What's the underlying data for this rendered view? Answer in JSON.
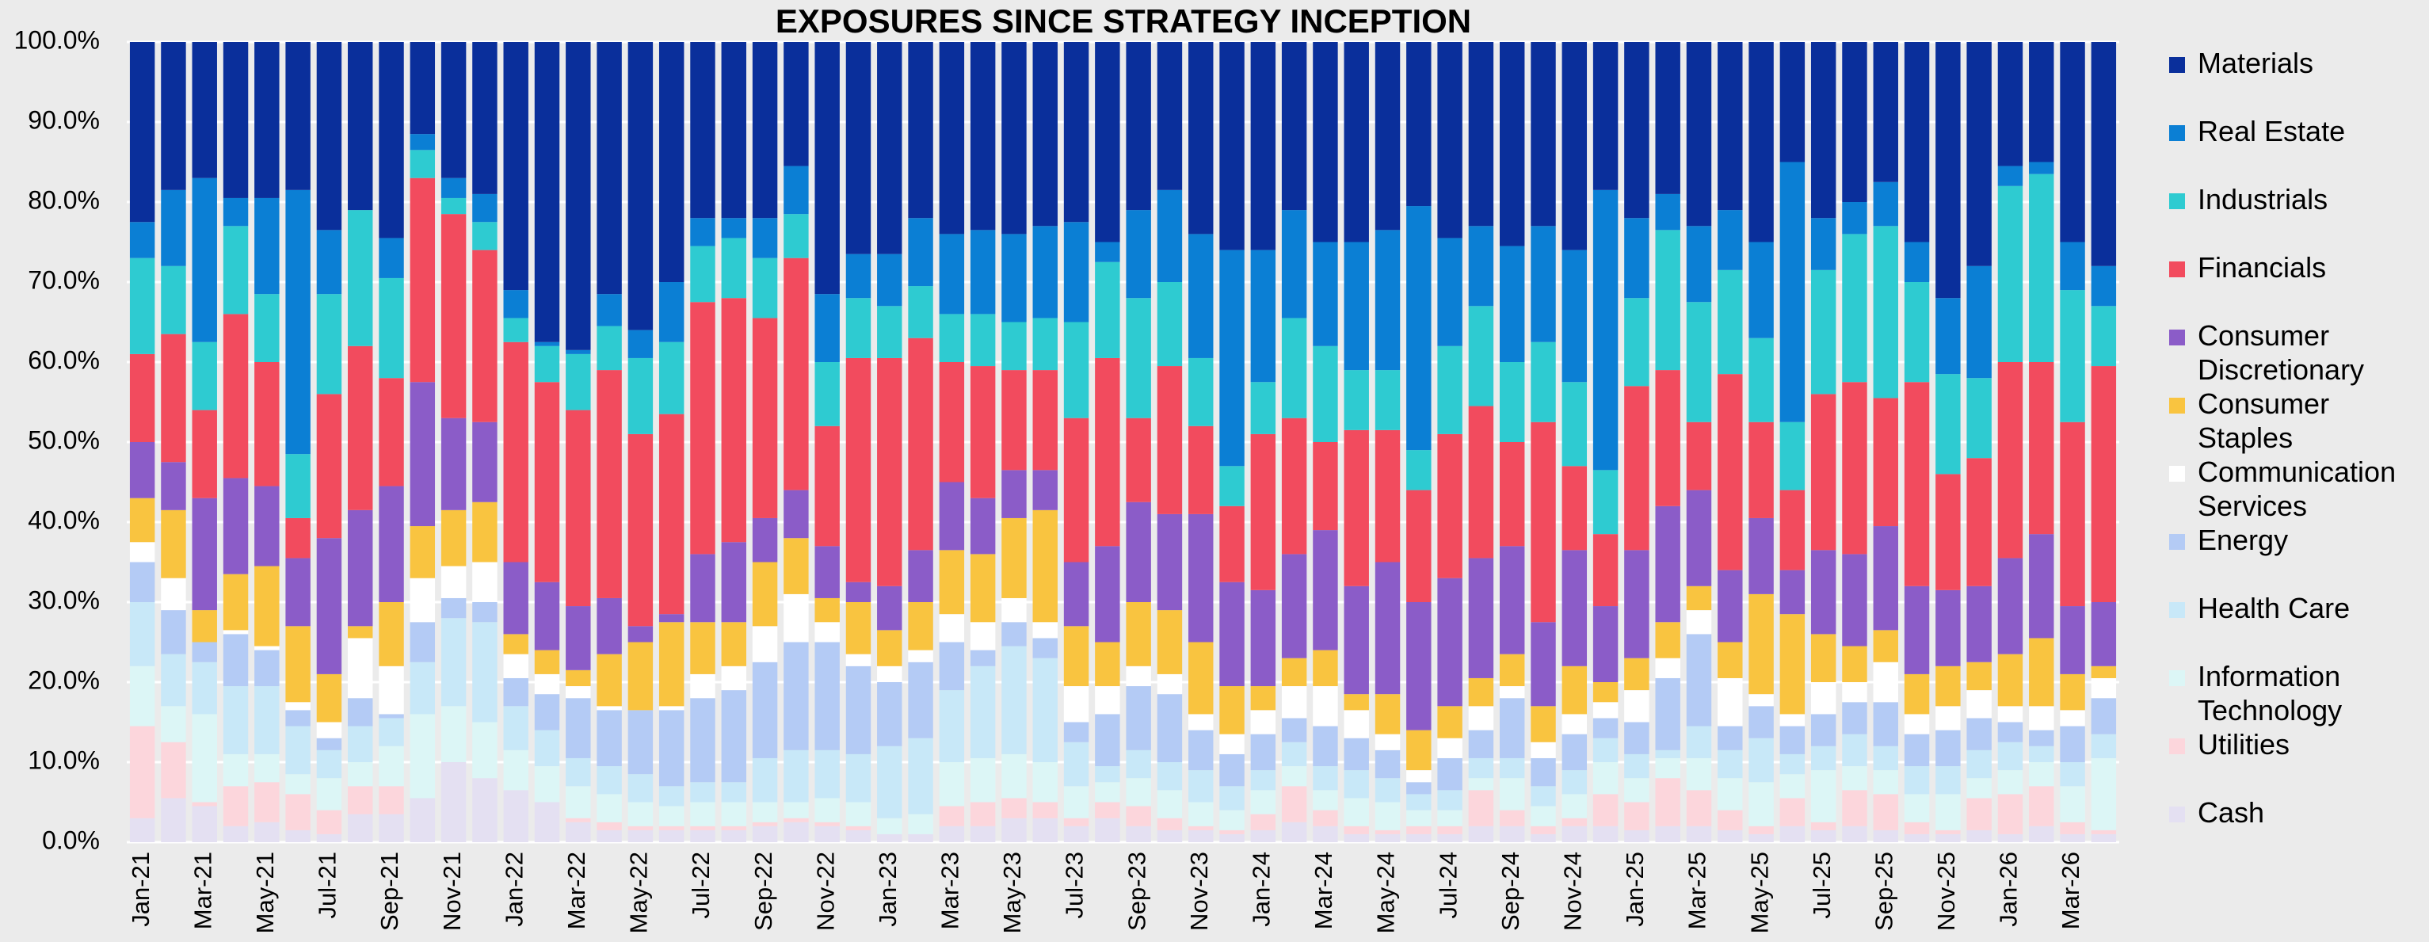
{
  "chart_data": {
    "type": "bar",
    "stacked": true,
    "title": "EXPOSURES SINCE STRATEGY INCEPTION",
    "categories": [
      "Jan-21",
      null,
      "Mar-21",
      null,
      "May-21",
      null,
      "Jul-21",
      null,
      "Sep-21",
      null,
      "Nov-21",
      null,
      "Jan-22",
      null,
      "Mar-22",
      null,
      "May-22",
      null,
      "Jul-22",
      null,
      "Sep-22",
      null,
      "Nov-22",
      null,
      "Jan-23",
      null,
      "Mar-23",
      null,
      "May-23",
      null,
      "Jul-23",
      null,
      "Sep-23",
      null,
      "Nov-23",
      null,
      "Jan-24",
      null,
      "Mar-24",
      null,
      "May-24",
      null,
      "Jul-24",
      null,
      "Sep-24",
      null,
      "Nov-24",
      null,
      "Jan-25",
      null,
      "Mar-25",
      null,
      "May-25",
      null,
      "Jul-25",
      null,
      "Sep-25",
      null,
      "Nov-25",
      null,
      "Jan-26",
      null,
      "Mar-26",
      null
    ],
    "series": [
      {
        "name": "Cash",
        "color": "#e4e0f2",
        "values": [
          3,
          5.5,
          4.5,
          2,
          2.5,
          1.5,
          1,
          3.5,
          3.5,
          5.5,
          10,
          8,
          6.5,
          5,
          2.5,
          1.5,
          1.5,
          1.5,
          1.5,
          1.5,
          2,
          2.5,
          2,
          1.5,
          1,
          1,
          2,
          2,
          3,
          3,
          2,
          3,
          2,
          1.5,
          1.5,
          1,
          1.5,
          2.5,
          2,
          1,
          1,
          1,
          1,
          2,
          2,
          1,
          2,
          2,
          1.5,
          2,
          2,
          1.5,
          1,
          2,
          1.5,
          2,
          1.5,
          1,
          1,
          1.5,
          1,
          2,
          1,
          1
        ]
      },
      {
        "name": "Utilities",
        "color": "#fcd6dc",
        "values": [
          11.5,
          7,
          0.5,
          5,
          5,
          4.5,
          3,
          3.5,
          3.5,
          0,
          0,
          0,
          0,
          0,
          0.5,
          1,
          0.5,
          0.5,
          0.5,
          0.5,
          0.5,
          0.5,
          0.5,
          0.5,
          0,
          0,
          2.5,
          3,
          2.5,
          2,
          1,
          2,
          2.5,
          1.5,
          0.5,
          0.5,
          2,
          4.5,
          2,
          1,
          0.5,
          1,
          1,
          4.5,
          2,
          1,
          1,
          4,
          3.5,
          6,
          4.5,
          2.5,
          1,
          3.5,
          1,
          4.5,
          4.5,
          1.5,
          0.5,
          4,
          5,
          5,
          1.5,
          0.5
        ]
      },
      {
        "name": "Information Technology",
        "color": "#dcf6f6",
        "values": [
          7.5,
          4.5,
          11,
          4,
          3.5,
          2.5,
          4,
          3,
          5,
          10.5,
          7,
          7,
          5,
          4.5,
          4,
          3.5,
          3,
          2.5,
          3,
          3,
          2.5,
          2,
          3,
          3,
          2,
          2.5,
          5.5,
          5.5,
          5.5,
          5,
          4,
          2.5,
          3.5,
          3.5,
          3,
          2.5,
          3,
          2.5,
          2.5,
          3.5,
          3.5,
          2,
          2,
          1.5,
          4,
          2.5,
          3,
          4,
          3,
          2.5,
          4,
          4,
          5.5,
          3,
          6.5,
          3,
          3,
          3.5,
          4.5,
          2.5,
          3,
          3,
          4.5,
          9
        ]
      },
      {
        "name": "Health Care",
        "color": "#c8e8f8",
        "values": [
          8,
          6.5,
          6.5,
          8.5,
          8.5,
          6,
          3.5,
          4.5,
          3.5,
          6.5,
          11,
          12.5,
          5.5,
          4.5,
          3.5,
          3.5,
          3.5,
          2.5,
          2.5,
          2.5,
          5.5,
          6.5,
          6,
          6,
          9,
          9.5,
          9,
          11.5,
          13.5,
          13,
          5.5,
          2,
          3.5,
          3.5,
          4,
          3,
          2.5,
          3,
          3,
          3.5,
          3,
          2,
          2.5,
          2.5,
          2.5,
          2.5,
          3,
          3,
          3,
          1,
          4,
          3.5,
          5.5,
          2.5,
          3,
          4,
          3,
          3.5,
          3.5,
          3.5,
          3.5,
          2,
          3,
          3
        ]
      },
      {
        "name": "Energy",
        "color": "#b4cbf5",
        "values": [
          5,
          5.5,
          2.5,
          6.5,
          4.5,
          2,
          1.5,
          3.5,
          0.5,
          5,
          2.5,
          2.5,
          3.5,
          4.5,
          7.5,
          7,
          8,
          9.5,
          10.5,
          11.5,
          12,
          13.5,
          13.5,
          11,
          8,
          9.5,
          6,
          2,
          3,
          2.5,
          2.5,
          6.5,
          8,
          8.5,
          5,
          4,
          4.5,
          3,
          5,
          4,
          3.5,
          1.5,
          4,
          3.5,
          7.5,
          3.5,
          4.5,
          2.5,
          4,
          9,
          11.5,
          3,
          4,
          3.5,
          4,
          4,
          5.5,
          4,
          4.5,
          4,
          2.5,
          2,
          4.5,
          4.5
        ]
      },
      {
        "name": "Communication Services",
        "color": "#ffffff",
        "values": [
          2.5,
          4,
          0,
          0.5,
          0.5,
          1,
          2,
          7.5,
          6,
          5.5,
          4,
          5,
          3,
          2.5,
          1.5,
          0.5,
          0,
          0.5,
          3,
          3,
          4.5,
          6,
          2.5,
          1.5,
          2,
          1.5,
          3.5,
          3.5,
          3,
          2,
          4.5,
          3.5,
          2.5,
          2.5,
          2,
          2.5,
          3,
          4,
          5,
          3.5,
          2,
          1.5,
          2.5,
          3,
          1.5,
          2,
          2.5,
          2,
          4,
          2.5,
          3,
          6,
          1.5,
          1.5,
          4,
          2.5,
          5,
          2.5,
          3,
          3.5,
          2,
          3,
          2,
          2.5
        ]
      },
      {
        "name": "Consumer Staples",
        "color": "#f9c440",
        "values": [
          5.5,
          8.5,
          4,
          7,
          10,
          9.5,
          6,
          1.5,
          8,
          6.5,
          7,
          7.5,
          2.5,
          3,
          2,
          6.5,
          8.5,
          10.5,
          6.5,
          5.5,
          8,
          7,
          3,
          6.5,
          4.5,
          6,
          8,
          8.5,
          10,
          14,
          7.5,
          5.5,
          8,
          8,
          9,
          6,
          3,
          3.5,
          4.5,
          2,
          5,
          5,
          4,
          3.5,
          4,
          4.5,
          6,
          2.5,
          4,
          4.5,
          3,
          4.5,
          12.5,
          12.5,
          6,
          4.5,
          4,
          5,
          5,
          3.5,
          6.5,
          8.5,
          4.5,
          1.5
        ]
      },
      {
        "name": "Consumer Discretionary",
        "color": "#8b5cc8",
        "values": [
          7,
          6,
          14,
          12,
          10,
          8.5,
          17,
          14.5,
          14.5,
          18,
          11.5,
          10,
          9,
          8.5,
          8,
          7,
          2,
          1,
          8.5,
          10,
          5.5,
          6,
          6.5,
          2.5,
          5.5,
          6.5,
          8.5,
          7,
          6,
          5,
          8,
          12,
          12.5,
          12,
          16,
          13,
          12,
          13,
          15,
          13.5,
          16.5,
          16,
          16,
          15,
          13.5,
          10.5,
          14.5,
          9.5,
          13.5,
          14.5,
          12,
          9,
          9.5,
          5.5,
          10.5,
          11.5,
          13,
          11,
          9.5,
          9.5,
          12,
          13,
          8.5,
          8
        ]
      },
      {
        "name": "Financials",
        "color": "#f24b5e",
        "values": [
          11,
          16,
          11,
          20.5,
          15.5,
          5,
          18,
          20.5,
          13.5,
          25.5,
          25.5,
          21.5,
          27.5,
          25,
          24.5,
          28.5,
          24,
          25,
          31.5,
          30.5,
          25,
          29,
          15,
          28,
          28.5,
          26.5,
          15,
          16.5,
          12.5,
          12.5,
          18,
          23.5,
          10.5,
          18.5,
          11,
          9.5,
          19.5,
          17,
          11,
          19.5,
          16.5,
          14,
          18,
          19,
          13,
          25,
          10.5,
          9,
          20.5,
          17,
          8.5,
          24.5,
          12,
          10,
          19.5,
          21.5,
          16,
          25.5,
          14.5,
          16,
          24.5,
          21.5,
          23,
          29.5
        ]
      },
      {
        "name": "Industrials",
        "color": "#2ecbd1",
        "values": [
          12,
          8.5,
          8.5,
          11,
          8.5,
          8,
          12.5,
          17,
          12.5,
          3.5,
          2,
          3.5,
          3,
          4.5,
          7,
          5.5,
          9.5,
          9,
          7,
          7.5,
          7.5,
          5.5,
          8,
          7.5,
          6.5,
          6.5,
          6,
          6.5,
          6,
          6.5,
          12,
          12,
          15,
          10.5,
          8.5,
          5,
          6.5,
          12.5,
          12,
          7.5,
          7.5,
          5,
          11,
          12.5,
          10,
          10,
          10.5,
          8,
          11,
          17.5,
          15,
          13,
          10.5,
          8.5,
          15.5,
          18.5,
          21.5,
          12.5,
          12.5,
          10,
          22,
          23.5,
          16.5,
          7.5
        ]
      },
      {
        "name": "Real Estate",
        "color": "#0b7fd4",
        "values": [
          4.5,
          9.5,
          20.5,
          3.5,
          12,
          33,
          8,
          0,
          5,
          2,
          2.5,
          3.5,
          3.5,
          0.5,
          0.5,
          4,
          3.5,
          7.5,
          3.5,
          2.5,
          5,
          6,
          8.5,
          5.5,
          6.5,
          8.5,
          10,
          10.5,
          11,
          11.5,
          12.5,
          2.5,
          11,
          11.5,
          15.5,
          27,
          16.5,
          13.5,
          13,
          16,
          17.5,
          30.5,
          13.5,
          10,
          14.5,
          14.5,
          16.5,
          35,
          10,
          4.5,
          9.5,
          7.5,
          12,
          32.5,
          6.5,
          4,
          5.5,
          5,
          9.5,
          14,
          2.5,
          1.5,
          6,
          5
        ]
      },
      {
        "name": "Materials",
        "color": "#0a2f9b",
        "values": [
          22.5,
          18.5,
          17,
          19.5,
          19.5,
          18.5,
          23.5,
          21,
          24.5,
          11.5,
          17,
          19,
          31,
          37.5,
          38.5,
          31.5,
          36,
          30,
          22,
          22,
          22,
          15.5,
          31.5,
          26.5,
          26.5,
          22,
          24,
          23.5,
          24,
          23,
          22.5,
          25,
          21,
          18.5,
          24,
          26,
          26,
          21,
          25,
          25,
          23.5,
          20.5,
          24.5,
          23,
          25.5,
          23,
          26,
          18.5,
          22,
          19,
          23,
          21,
          25,
          15,
          22,
          20,
          17.5,
          25,
          32,
          28,
          15.5,
          15,
          25,
          28
        ]
      }
    ],
    "ylim": [
      0,
      100
    ],
    "yticks": [
      {
        "value": 0,
        "label": "0.0%"
      },
      {
        "value": 10,
        "label": "10.0%"
      },
      {
        "value": 20,
        "label": "20.0%"
      },
      {
        "value": 30,
        "label": "30.0%"
      },
      {
        "value": 40,
        "label": "40.0%"
      },
      {
        "value": 50,
        "label": "50.0%"
      },
      {
        "value": 60,
        "label": "60.0%"
      },
      {
        "value": 70,
        "label": "70.0%"
      },
      {
        "value": 80,
        "label": "80.0%"
      },
      {
        "value": 90,
        "label": "90.0%"
      },
      {
        "value": 100,
        "label": "100.0%"
      }
    ],
    "grid": true,
    "legend": "right"
  }
}
